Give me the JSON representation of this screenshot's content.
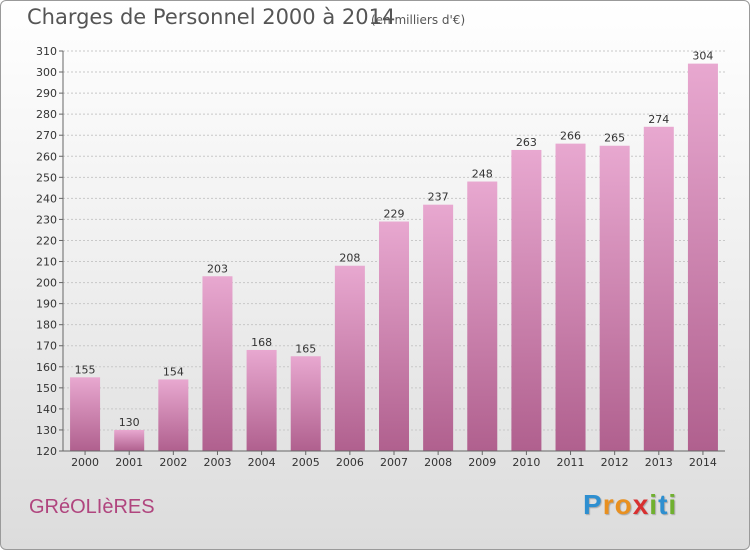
{
  "title": "Charges de Personnel 2000 à 2014",
  "subtitle": "(en milliers d'€)",
  "commune": "GRéOLIèRES",
  "logo": {
    "letters": [
      {
        "ch": "P",
        "color": "#2e8fd0"
      },
      {
        "ch": "r",
        "color": "#e89020"
      },
      {
        "ch": "o",
        "color": "#e89020"
      },
      {
        "ch": "x",
        "color": "#d83030"
      },
      {
        "ch": "i",
        "color": "#70b030"
      },
      {
        "ch": "t",
        "color": "#2e8fd0"
      },
      {
        "ch": "i",
        "color": "#70b030"
      }
    ]
  },
  "colors": {
    "bar_top": "#e8a8d0",
    "bar_bottom": "#b0608e"
  },
  "chart_data": {
    "type": "bar",
    "title": "Charges de Personnel 2000 à 2014",
    "subtitle": "(en milliers d'€)",
    "categories": [
      "2000",
      "2001",
      "2002",
      "2003",
      "2004",
      "2005",
      "2006",
      "2007",
      "2008",
      "2009",
      "2010",
      "2011",
      "2012",
      "2013",
      "2014"
    ],
    "values": [
      155,
      130,
      154,
      203,
      168,
      165,
      208,
      229,
      237,
      248,
      263,
      266,
      265,
      274,
      304
    ],
    "ylim": [
      120,
      310
    ],
    "yticks": [
      120,
      130,
      140,
      150,
      160,
      170,
      180,
      190,
      200,
      210,
      220,
      230,
      240,
      250,
      260,
      270,
      280,
      290,
      300,
      310
    ],
    "grid": true
  }
}
